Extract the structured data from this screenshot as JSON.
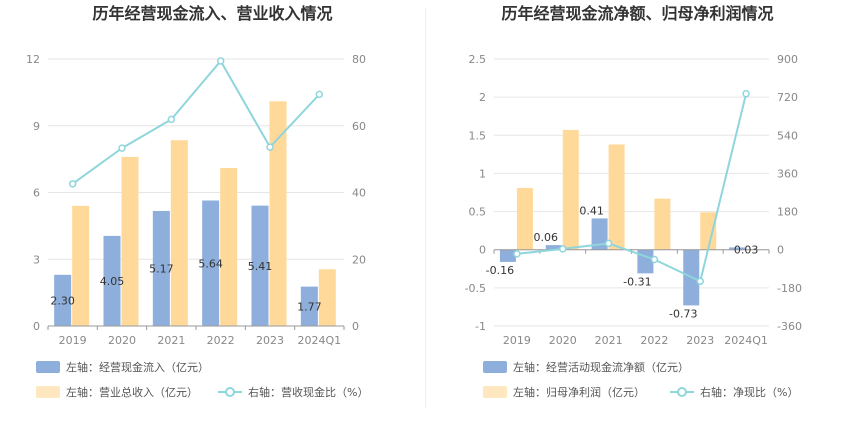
{
  "colors": {
    "bar1": "#8eaedb",
    "bar2": "#ffd99a",
    "line": "#8ed6dc",
    "grid": "#e6e6e6",
    "axis": "#cccccc"
  },
  "chart_data": [
    {
      "type": "bar",
      "title": "历年经营现金流入、营业收入情况",
      "categories": [
        "2019",
        "2020",
        "2021",
        "2022",
        "2023",
        "2024Q1"
      ],
      "left_axis": {
        "ylim": [
          0,
          12
        ],
        "ticks": [
          "0",
          "3",
          "6",
          "9",
          "12"
        ]
      },
      "right_axis": {
        "ylim": [
          0,
          80
        ],
        "ticks": [
          "0",
          "20",
          "40",
          "60",
          "80"
        ]
      },
      "series": [
        {
          "name": "左轴：经营现金流入（亿元）",
          "axis": "left",
          "kind": "bar",
          "values": [
            2.3,
            4.05,
            5.17,
            5.64,
            5.41,
            1.77
          ],
          "labels": [
            "2.30",
            "4.05",
            "5.17",
            "5.64",
            "5.41",
            "1.77"
          ]
        },
        {
          "name": "左轴：营业总收入（亿元）",
          "axis": "left",
          "kind": "bar",
          "values": [
            5.4,
            7.6,
            8.35,
            7.1,
            10.1,
            2.55
          ]
        },
        {
          "name": "右轴：营收现金比（%）",
          "axis": "right",
          "kind": "line",
          "values": [
            42.6,
            53.3,
            61.9,
            79.4,
            53.6,
            69.4
          ]
        }
      ]
    },
    {
      "type": "bar",
      "title": "历年经营现金流净额、归母净利润情况",
      "categories": [
        "2019",
        "2020",
        "2021",
        "2022",
        "2023",
        "2024Q1"
      ],
      "left_axis": {
        "ylim": [
          -1,
          2.5
        ],
        "ticks": [
          "-1",
          "-0.5",
          "0",
          "0.5",
          "1",
          "1.5",
          "2",
          "2.5"
        ]
      },
      "right_axis": {
        "ylim": [
          -360,
          900
        ],
        "ticks": [
          "-360",
          "-180",
          "0",
          "180",
          "360",
          "540",
          "720",
          "900"
        ]
      },
      "series": [
        {
          "name": "左轴：经营活动现金流净额（亿元）",
          "axis": "left",
          "kind": "bar",
          "values": [
            -0.16,
            0.06,
            0.41,
            -0.31,
            -0.73,
            0.03
          ],
          "labels": [
            "-0.16",
            "0.06",
            "0.41",
            "-0.31",
            "-0.73",
            "0.03"
          ]
        },
        {
          "name": "左轴：归母净利润（亿元）",
          "axis": "left",
          "kind": "bar",
          "values": [
            0.81,
            1.57,
            1.38,
            0.67,
            0.49,
            0.0
          ]
        },
        {
          "name": "右轴：净现比（%）",
          "axis": "right",
          "kind": "line",
          "values": [
            -19.8,
            3.8,
            29.7,
            -46.3,
            -149.0,
            736.0
          ]
        }
      ]
    }
  ]
}
